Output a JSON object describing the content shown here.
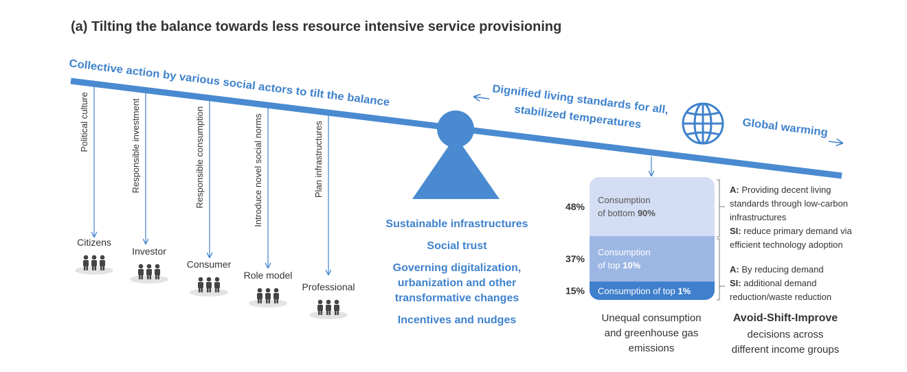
{
  "title": "(a) Tilting the balance towards less resource intensive service provisioning",
  "beam_label": "Collective action by various social actors to tilt the balance",
  "goal_label": [
    "Dignified living standards for all,",
    "stabilized temperatures"
  ],
  "risk_label": "Global warming",
  "actors": [
    {
      "mechanism": "Political culture",
      "name": "Citizens"
    },
    {
      "mechanism": "Responsible investment",
      "name": "Investor"
    },
    {
      "mechanism": "Responsible consumption",
      "name": "Consumer"
    },
    {
      "mechanism": "Introduce novel social norms",
      "name": "Role model"
    },
    {
      "mechanism": "Plan infrastructures",
      "name": "Professional"
    }
  ],
  "levers": [
    [
      "Sustainable infrastructures"
    ],
    [
      "Social trust"
    ],
    [
      "Governing digitalization,",
      "urbanization and other",
      "transformative changes"
    ],
    [
      "Incentives and nudges"
    ]
  ],
  "consumption_groups": [
    {
      "share": 48,
      "label": "48%",
      "line1": "Consumption",
      "line2": "of bottom",
      "highlight": "90%"
    },
    {
      "share": 37,
      "label": "37%",
      "line1": "Consumption",
      "line2": "of top",
      "highlight": "10%"
    },
    {
      "share": 15,
      "label": "15%",
      "line1": "Consumption of top",
      "highlight": "1%"
    }
  ],
  "notes": [
    {
      "a_label": "A:",
      "a_lines": [
        "Providing decent living",
        "standards through low-carbon",
        "infrastructures"
      ],
      "si_label": "SI:",
      "si_lines": [
        "reduce primary demand via",
        "efficient technology adoption"
      ]
    },
    {
      "a_label": "A:",
      "a_lines": [
        "By reducing demand"
      ],
      "si_label": "SI:",
      "si_lines": [
        "additional demand",
        "reduction/waste reduction"
      ]
    }
  ],
  "caption_left": [
    "Unequal consumption",
    "and greenhouse gas",
    "emissions"
  ],
  "caption_right": {
    "title": "Avoid-Shift-Improve",
    "lines": [
      "decisions across",
      "different income groups"
    ]
  }
}
